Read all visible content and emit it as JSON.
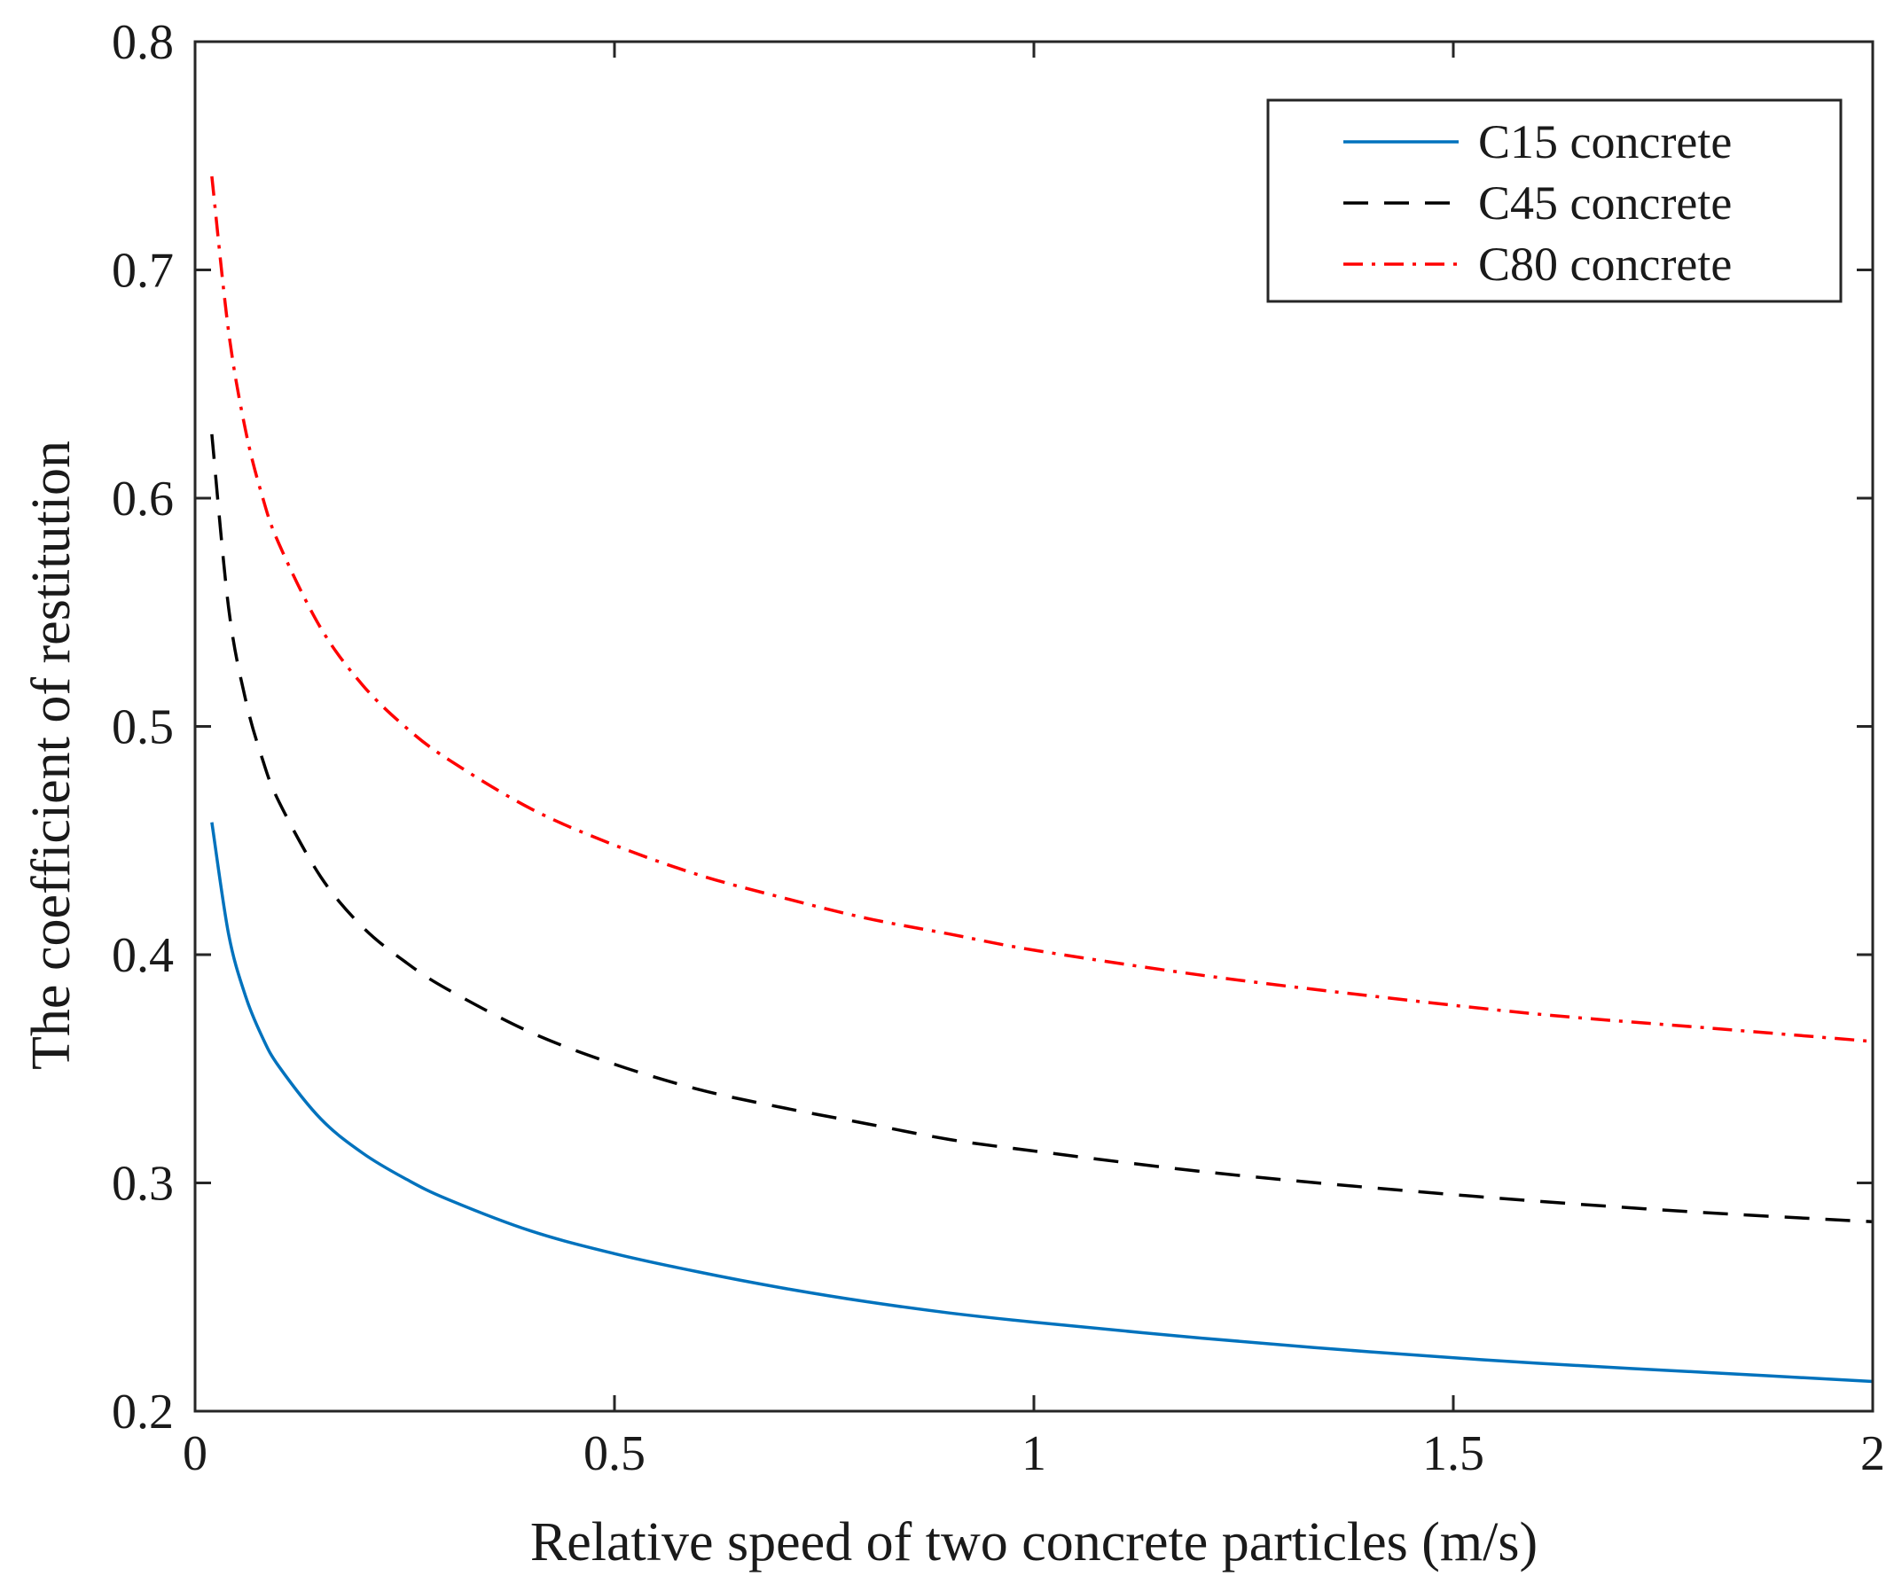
{
  "chart_data": {
    "type": "line",
    "title": "",
    "xlabel": "Relative speed of two concrete particles (m/s)",
    "ylabel": "The coefficient of restitution",
    "xlim": [
      0,
      2
    ],
    "ylim": [
      0.2,
      0.8
    ],
    "x_ticks": [
      0,
      0.5,
      1,
      1.5,
      2
    ],
    "x_tick_labels": [
      "0",
      "0.5",
      "1",
      "1.5",
      "2"
    ],
    "y_ticks": [
      0.2,
      0.3,
      0.4,
      0.5,
      0.6,
      0.7,
      0.8
    ],
    "y_tick_labels": [
      "0.2",
      "0.3",
      "0.4",
      "0.5",
      "0.6",
      "0.7",
      "0.8"
    ],
    "grid": false,
    "legend_position": "top-right",
    "series": [
      {
        "name": "C15 concrete",
        "color": "#0072BD",
        "style": "solid",
        "x": [
          0.02,
          0.04,
          0.06,
          0.08,
          0.1,
          0.15,
          0.2,
          0.25,
          0.3,
          0.4,
          0.5,
          0.6,
          0.7,
          0.8,
          0.9,
          1.0,
          1.2,
          1.4,
          1.6,
          1.8,
          2.0
        ],
        "y": [
          0.458,
          0.409,
          0.382,
          0.364,
          0.351,
          0.328,
          0.313,
          0.302,
          0.293,
          0.279,
          0.269,
          0.261,
          0.254,
          0.248,
          0.243,
          0.239,
          0.232,
          0.226,
          0.221,
          0.217,
          0.213
        ]
      },
      {
        "name": "C45 concrete",
        "color": "#000000",
        "style": "dashed",
        "x": [
          0.02,
          0.04,
          0.06,
          0.08,
          0.1,
          0.15,
          0.2,
          0.25,
          0.3,
          0.4,
          0.5,
          0.6,
          0.7,
          0.8,
          0.9,
          1.0,
          1.2,
          1.4,
          1.6,
          1.8,
          2.0
        ],
        "y": [
          0.628,
          0.552,
          0.512,
          0.486,
          0.467,
          0.434,
          0.412,
          0.397,
          0.385,
          0.366,
          0.352,
          0.341,
          0.333,
          0.326,
          0.319,
          0.314,
          0.305,
          0.298,
          0.292,
          0.287,
          0.283
        ]
      },
      {
        "name": "C80 concrete",
        "color": "#FF0000",
        "style": "dashdot",
        "x": [
          0.02,
          0.04,
          0.06,
          0.08,
          0.1,
          0.15,
          0.2,
          0.25,
          0.3,
          0.4,
          0.5,
          0.6,
          0.7,
          0.8,
          0.9,
          1.0,
          1.2,
          1.4,
          1.6,
          1.8,
          2.0
        ],
        "y": [
          0.741,
          0.673,
          0.63,
          0.601,
          0.58,
          0.543,
          0.518,
          0.5,
          0.486,
          0.464,
          0.448,
          0.435,
          0.425,
          0.416,
          0.409,
          0.402,
          0.391,
          0.382,
          0.374,
          0.368,
          0.362
        ]
      }
    ]
  }
}
